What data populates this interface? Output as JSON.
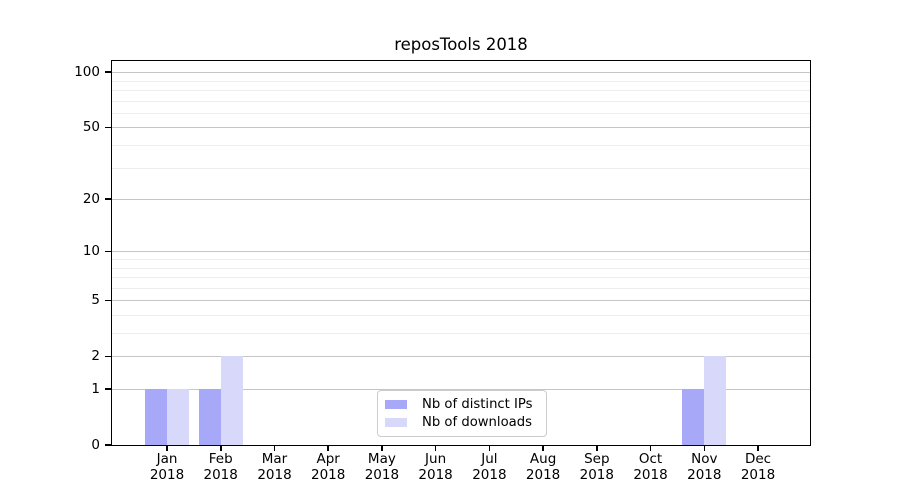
{
  "chart_data": {
    "type": "bar",
    "title": "reposTools 2018",
    "categories": [
      "Jan",
      "Feb",
      "Mar",
      "Apr",
      "May",
      "Jun",
      "Jul",
      "Aug",
      "Sep",
      "Oct",
      "Nov",
      "Dec"
    ],
    "year_label": "2018",
    "series": [
      {
        "name": "Nb of distinct IPs",
        "color": "#a8a8f8",
        "values": [
          1,
          1,
          0,
          0,
          0,
          0,
          0,
          0,
          0,
          0,
          1,
          0
        ]
      },
      {
        "name": "Nb of downloads",
        "color": "#d8d8fa",
        "values": [
          1,
          2,
          0,
          0,
          0,
          0,
          0,
          0,
          0,
          0,
          2,
          0
        ]
      }
    ],
    "y_axis": {
      "scale": "log1p",
      "major_ticks": [
        0,
        1,
        2,
        5,
        10,
        20,
        50,
        100
      ],
      "minor_ticks": [
        3,
        4,
        6,
        7,
        8,
        9,
        30,
        40,
        60,
        70,
        80,
        90
      ],
      "top_value": 114
    },
    "grid": "both",
    "legend_position": "lower center"
  },
  "colors": {
    "major_grid": "#c6c6c6",
    "minor_grid": "#ededed",
    "spine": "#000000",
    "text": "#000000"
  }
}
